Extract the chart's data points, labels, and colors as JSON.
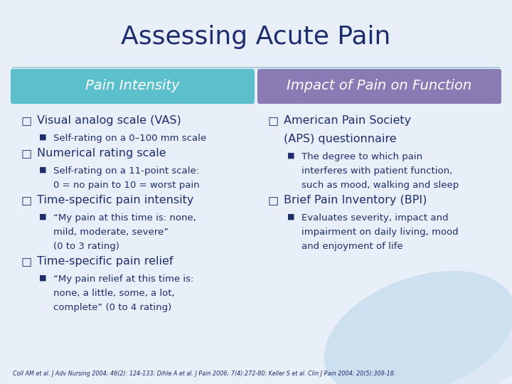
{
  "title": "Assessing Acute Pain",
  "title_color": "#1e2d6e",
  "bg_color": "#e8eff8",
  "header_left_text": "Pain Intensity",
  "header_left_color": "#5bbfcc",
  "header_right_text": "Impact of Pain on Function",
  "header_right_color": "#8b7bb5",
  "header_text_color": "#ffffff",
  "divider_color": "#a8ccd8",
  "body_text_color": "#1e2d6e",
  "left_items": [
    {
      "level": 0,
      "text": "Visual analog scale (VAS)"
    },
    {
      "level": 1,
      "text": "Self-rating on a 0–100 mm scale"
    },
    {
      "level": 0,
      "text": "Numerical rating scale"
    },
    {
      "level": 1,
      "text": "Self-rating on a 11-point scale:\n0 = no pain to 10 = worst pain"
    },
    {
      "level": 0,
      "text": "Time-specific pain intensity"
    },
    {
      "level": 1,
      "text": "“My pain at this time is: none,\nmild, moderate, severe”\n(0 to 3 rating)"
    },
    {
      "level": 0,
      "text": "Time-specific pain relief"
    },
    {
      "level": 1,
      "text": "“My pain relief at this time is:\nnone, a little, some, a lot,\ncomplete” (0 to 4 rating)"
    }
  ],
  "right_items": [
    {
      "level": 0,
      "text": "American Pain Society\n(APS) questionnaire"
    },
    {
      "level": 1,
      "text": "The degree to which pain\ninterferes with patient function,\nsuch as mood, walking and sleep"
    },
    {
      "level": 0,
      "text": "Brief Pain Inventory (BPI)"
    },
    {
      "level": 1,
      "text": "Evaluates severity, impact and\nimpairment on daily living, mood\nand enjoyment of life"
    }
  ],
  "footnote": "Coll AM et al. J Adv Nursing 2004; 46(2): 124-133; Dihle A et al. J Pain 2006; 7(4):272-80; Keller S et al. Clin J Pain 2004; 20(5):309-18.",
  "footnote_color": "#1e2d6e"
}
